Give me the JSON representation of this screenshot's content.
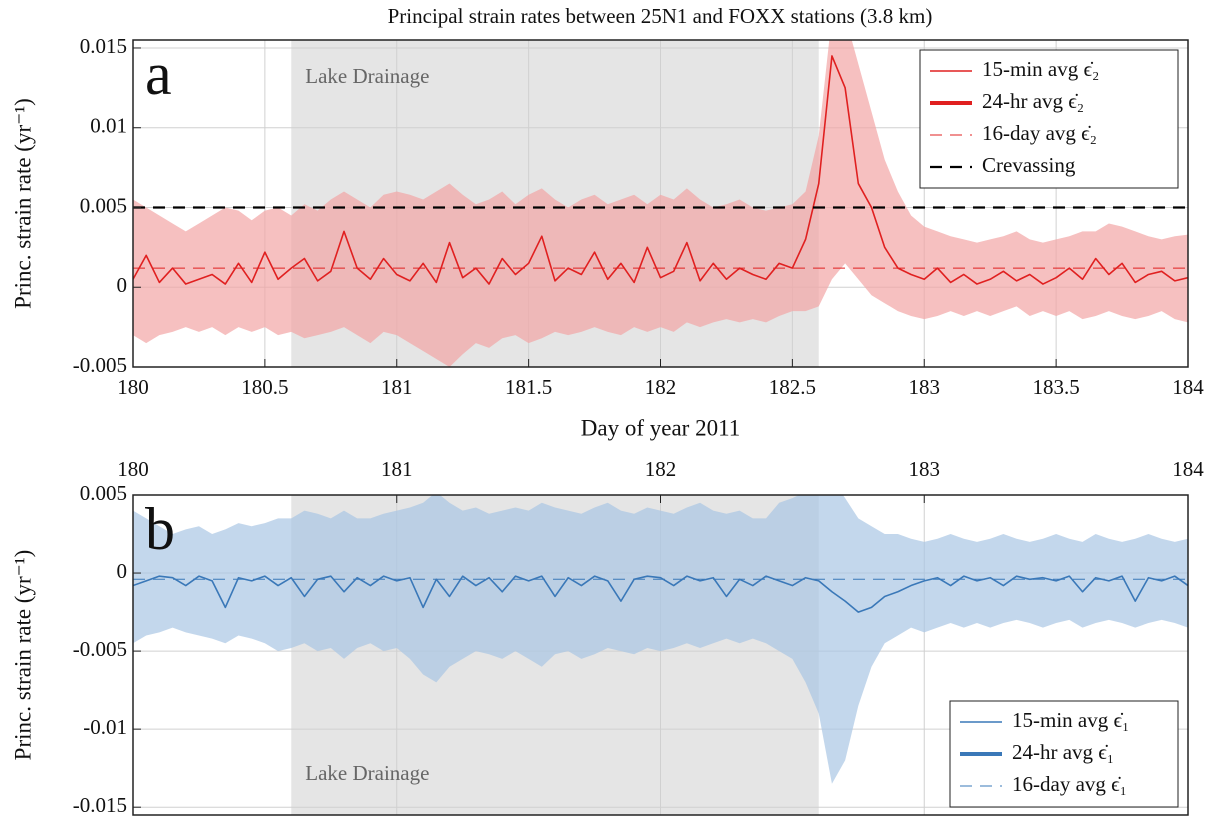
{
  "chart_data": [
    {
      "type": "line",
      "title": "Principal strain rates between 25N1 and FOXX stations (3.8 km)",
      "panel_label": "a",
      "xlabel": "Day of year 2011",
      "ylabel": "Princ. strain rate (yr⁻¹)",
      "xlim": [
        180,
        184
      ],
      "xticks": [
        180,
        180.5,
        181,
        181.5,
        182,
        182.5,
        183,
        183.5,
        184
      ],
      "xaxis_position": "bottom",
      "ylim": [
        -0.005,
        0.0155
      ],
      "yticks": [
        -0.005,
        0,
        0.005,
        0.01,
        0.015
      ],
      "grid": true,
      "legend_position": "upper right",
      "shade": {
        "range": [
          180.6,
          182.6
        ],
        "label": "Lake Drainage",
        "color": "#e5e5e5"
      },
      "x": [
        180,
        180.05,
        180.1,
        180.15,
        180.2,
        180.25,
        180.3,
        180.35,
        180.4,
        180.45,
        180.5,
        180.55,
        180.6,
        180.65,
        180.7,
        180.75,
        180.8,
        180.85,
        180.9,
        180.95,
        181,
        181.05,
        181.1,
        181.15,
        181.2,
        181.25,
        181.3,
        181.35,
        181.4,
        181.45,
        181.5,
        181.55,
        181.6,
        181.65,
        181.7,
        181.75,
        181.8,
        181.85,
        181.9,
        181.95,
        182,
        182.05,
        182.1,
        182.15,
        182.2,
        182.25,
        182.3,
        182.35,
        182.4,
        182.45,
        182.5,
        182.55,
        182.6,
        182.65,
        182.7,
        182.75,
        182.8,
        182.85,
        182.9,
        182.95,
        183,
        183.05,
        183.1,
        183.15,
        183.2,
        183.25,
        183.3,
        183.35,
        183.4,
        183.45,
        183.5,
        183.55,
        183.6,
        183.65,
        183.7,
        183.75,
        183.8,
        183.85,
        183.9,
        183.95,
        184
      ],
      "band": {
        "color": "#f2a5a5",
        "upper": [
          0.0055,
          0.005,
          0.0045,
          0.004,
          0.0035,
          0.004,
          0.0045,
          0.005,
          0.0048,
          0.0042,
          0.0048,
          0.005,
          0.0045,
          0.0052,
          0.0048,
          0.0055,
          0.006,
          0.0055,
          0.005,
          0.0058,
          0.006,
          0.0058,
          0.0055,
          0.006,
          0.0065,
          0.0058,
          0.0052,
          0.0055,
          0.006,
          0.0052,
          0.0058,
          0.0062,
          0.0055,
          0.005,
          0.0055,
          0.0058,
          0.0052,
          0.0055,
          0.0058,
          0.0052,
          0.0058,
          0.0055,
          0.0062,
          0.0055,
          0.005,
          0.0052,
          0.0055,
          0.005,
          0.0048,
          0.005,
          0.0052,
          0.006,
          0.0095,
          0.017,
          0.017,
          0.014,
          0.011,
          0.008,
          0.006,
          0.0045,
          0.0038,
          0.0035,
          0.0032,
          0.003,
          0.0028,
          0.003,
          0.0032,
          0.0035,
          0.003,
          0.0028,
          0.003,
          0.0032,
          0.0035,
          0.0035,
          0.004,
          0.0038,
          0.0035,
          0.0032,
          0.003,
          0.0032,
          0.0033
        ],
        "lower": [
          -0.003,
          -0.0035,
          -0.003,
          -0.0028,
          -0.0025,
          -0.0028,
          -0.0025,
          -0.003,
          -0.0025,
          -0.0028,
          -0.0025,
          -0.003,
          -0.0028,
          -0.0032,
          -0.003,
          -0.0028,
          -0.0025,
          -0.003,
          -0.0035,
          -0.0028,
          -0.003,
          -0.0035,
          -0.004,
          -0.0045,
          -0.005,
          -0.0042,
          -0.0035,
          -0.0038,
          -0.0032,
          -0.003,
          -0.0035,
          -0.0032,
          -0.0028,
          -0.003,
          -0.0028,
          -0.0025,
          -0.0028,
          -0.003,
          -0.0025,
          -0.0028,
          -0.0025,
          -0.0028,
          -0.0022,
          -0.0025,
          -0.0022,
          -0.002,
          -0.0022,
          -0.002,
          -0.0022,
          -0.0018,
          -0.0015,
          -0.0015,
          -0.0012,
          0.0005,
          0.0015,
          0.0005,
          -0.0005,
          -0.001,
          -0.0015,
          -0.0018,
          -0.002,
          -0.0018,
          -0.0015,
          -0.0018,
          -0.0015,
          -0.0018,
          -0.0015,
          -0.0012,
          -0.0018,
          -0.0015,
          -0.0018,
          -0.0015,
          -0.002,
          -0.0018,
          -0.0015,
          -0.0018,
          -0.002,
          -0.0018,
          -0.0015,
          -0.002,
          -0.0022
        ]
      },
      "series": [
        {
          "name": "15-min avg ϵ̇₂",
          "color": "#e02020",
          "line_width": 1.6,
          "values": [
            0.0005,
            0.002,
            0.0003,
            0.0012,
            0.0002,
            0.0005,
            0.0008,
            0.0002,
            0.0015,
            0.0003,
            0.0022,
            0.0005,
            0.0012,
            0.0018,
            0.0004,
            0.001,
            0.0035,
            0.0012,
            0.0005,
            0.0018,
            0.0008,
            0.0004,
            0.0015,
            0.0003,
            0.0028,
            0.0006,
            0.0012,
            0.0002,
            0.0018,
            0.0008,
            0.0015,
            0.0032,
            0.0004,
            0.0012,
            0.0008,
            0.0022,
            0.0005,
            0.0015,
            0.0003,
            0.0025,
            0.0006,
            0.001,
            0.0028,
            0.0004,
            0.0015,
            0.0005,
            0.0012,
            0.0008,
            0.0005,
            0.0015,
            0.0012,
            0.003,
            0.0065,
            0.0145,
            0.0125,
            0.0065,
            0.005,
            0.0025,
            0.0012,
            0.0008,
            0.0005,
            0.0012,
            0.0003,
            0.0008,
            0.0002,
            0.0005,
            0.001,
            0.0004,
            0.0008,
            0.0002,
            0.0006,
            0.0012,
            0.0005,
            0.0018,
            0.0008,
            0.0015,
            0.0003,
            0.0008,
            0.001,
            0.0004,
            0.0006
          ]
        },
        {
          "name": "24-hr avg ϵ̇₂",
          "color": "#e02020",
          "line_width": 4
        },
        {
          "name": "16-day avg ϵ̇₂",
          "color": "#e02020",
          "line_width": 1,
          "dash": true,
          "value": 0.0012
        },
        {
          "name": "Crevassing",
          "color": "#000000",
          "line_width": 2.2,
          "dash": true,
          "value": 0.005
        }
      ]
    },
    {
      "type": "line",
      "panel_label": "b",
      "ylabel": "Princ. strain rate (yr⁻¹)",
      "xlim": [
        180,
        184
      ],
      "xticks": [
        180,
        181,
        182,
        183,
        184
      ],
      "xaxis_position": "top",
      "ylim": [
        -0.0155,
        0.005
      ],
      "yticks": [
        0.005,
        0,
        -0.005,
        -0.01,
        -0.015
      ],
      "grid": true,
      "legend_position": "lower right",
      "shade": {
        "range": [
          180.6,
          182.6
        ],
        "label": "Lake Drainage",
        "color": "#e5e5e5"
      },
      "x": [
        180,
        180.05,
        180.1,
        180.15,
        180.2,
        180.25,
        180.3,
        180.35,
        180.4,
        180.45,
        180.5,
        180.55,
        180.6,
        180.65,
        180.7,
        180.75,
        180.8,
        180.85,
        180.9,
        180.95,
        181,
        181.05,
        181.1,
        181.15,
        181.2,
        181.25,
        181.3,
        181.35,
        181.4,
        181.45,
        181.5,
        181.55,
        181.6,
        181.65,
        181.7,
        181.75,
        181.8,
        181.85,
        181.9,
        181.95,
        182,
        182.05,
        182.1,
        182.15,
        182.2,
        182.25,
        182.3,
        182.35,
        182.4,
        182.45,
        182.5,
        182.55,
        182.6,
        182.65,
        182.7,
        182.75,
        182.8,
        182.85,
        182.9,
        182.95,
        183,
        183.05,
        183.1,
        183.15,
        183.2,
        183.25,
        183.3,
        183.35,
        183.4,
        183.45,
        183.5,
        183.55,
        183.6,
        183.65,
        183.7,
        183.75,
        183.8,
        183.85,
        183.9,
        183.95,
        184
      ],
      "band": {
        "color": "#a9c6e4",
        "upper": [
          0.004,
          0.0035,
          0.003,
          0.0025,
          0.0028,
          0.003,
          0.0025,
          0.0028,
          0.0032,
          0.003,
          0.0032,
          0.0035,
          0.0035,
          0.004,
          0.0038,
          0.0035,
          0.004,
          0.0035,
          0.0035,
          0.0038,
          0.004,
          0.0042,
          0.0045,
          0.0052,
          0.0045,
          0.004,
          0.0042,
          0.0038,
          0.004,
          0.0042,
          0.004,
          0.0045,
          0.0042,
          0.004,
          0.0038,
          0.0042,
          0.0045,
          0.004,
          0.0038,
          0.0042,
          0.004,
          0.0038,
          0.0042,
          0.0045,
          0.004,
          0.0038,
          0.004,
          0.0035,
          0.0035,
          0.0045,
          0.0048,
          0.0052,
          0.006,
          0.006,
          0.0048,
          0.0035,
          0.003,
          0.0025,
          0.0025,
          0.0022,
          0.002,
          0.0022,
          0.0025,
          0.0022,
          0.002,
          0.0022,
          0.0025,
          0.0022,
          0.002,
          0.0022,
          0.0025,
          0.0022,
          0.002,
          0.0025,
          0.0022,
          0.002,
          0.0022,
          0.0025,
          0.0022,
          0.002,
          0.0022
        ],
        "lower": [
          -0.0045,
          -0.004,
          -0.0038,
          -0.0035,
          -0.0038,
          -0.004,
          -0.0042,
          -0.0045,
          -0.004,
          -0.0042,
          -0.0045,
          -0.005,
          -0.0048,
          -0.0045,
          -0.005,
          -0.0048,
          -0.0055,
          -0.0048,
          -0.0045,
          -0.005,
          -0.0048,
          -0.0055,
          -0.0065,
          -0.007,
          -0.006,
          -0.0055,
          -0.005,
          -0.0052,
          -0.0055,
          -0.005,
          -0.0055,
          -0.006,
          -0.0052,
          -0.005,
          -0.0055,
          -0.0052,
          -0.0048,
          -0.005,
          -0.0052,
          -0.0048,
          -0.005,
          -0.0048,
          -0.0045,
          -0.0048,
          -0.0045,
          -0.0042,
          -0.0045,
          -0.0042,
          -0.0045,
          -0.005,
          -0.0055,
          -0.007,
          -0.009,
          -0.0135,
          -0.012,
          -0.0085,
          -0.006,
          -0.0045,
          -0.004,
          -0.0035,
          -0.0038,
          -0.0035,
          -0.0032,
          -0.0035,
          -0.0032,
          -0.0035,
          -0.0032,
          -0.003,
          -0.0032,
          -0.0035,
          -0.0032,
          -0.003,
          -0.0035,
          -0.0032,
          -0.003,
          -0.0032,
          -0.0035,
          -0.0032,
          -0.003,
          -0.0032,
          -0.0035
        ]
      },
      "series": [
        {
          "name": "15-min avg ϵ̇₁",
          "color": "#3a78b8",
          "line_width": 1.6,
          "values": [
            -0.0008,
            -0.0005,
            -0.0002,
            -0.0003,
            -0.0008,
            -0.0002,
            -0.0005,
            -0.0022,
            -0.0003,
            -0.0005,
            -0.0002,
            -0.0008,
            -0.0003,
            -0.0015,
            -0.0004,
            -0.0002,
            -0.0012,
            -0.0003,
            -0.0008,
            -0.0002,
            -0.0005,
            -0.0003,
            -0.0022,
            -0.0004,
            -0.0015,
            -0.0002,
            -0.0008,
            -0.0003,
            -0.0012,
            -0.0002,
            -0.0005,
            -0.0002,
            -0.0015,
            -0.0003,
            -0.0008,
            -0.0002,
            -0.0005,
            -0.0018,
            -0.0004,
            -0.0002,
            -0.0003,
            -0.0008,
            -0.0002,
            -0.0005,
            -0.0003,
            -0.0015,
            -0.0004,
            -0.0008,
            -0.0002,
            -0.0005,
            -0.0008,
            -0.0003,
            -0.0005,
            -0.0012,
            -0.0018,
            -0.0025,
            -0.0022,
            -0.0015,
            -0.0012,
            -0.0008,
            -0.0005,
            -0.0003,
            -0.0008,
            -0.0002,
            -0.0005,
            -0.0003,
            -0.0008,
            -0.0002,
            -0.0004,
            -0.0003,
            -0.0005,
            -0.0002,
            -0.0012,
            -0.0003,
            -0.0005,
            -0.0002,
            -0.0018,
            -0.0003,
            -0.0005,
            -0.0002,
            -0.0008
          ]
        },
        {
          "name": "24-hr avg ϵ̇₁",
          "color": "#3a78b8",
          "line_width": 4
        },
        {
          "name": "16-day avg ϵ̇₁",
          "color": "#3a78b8",
          "line_width": 1,
          "dash": true,
          "value": -0.0004
        }
      ]
    }
  ]
}
